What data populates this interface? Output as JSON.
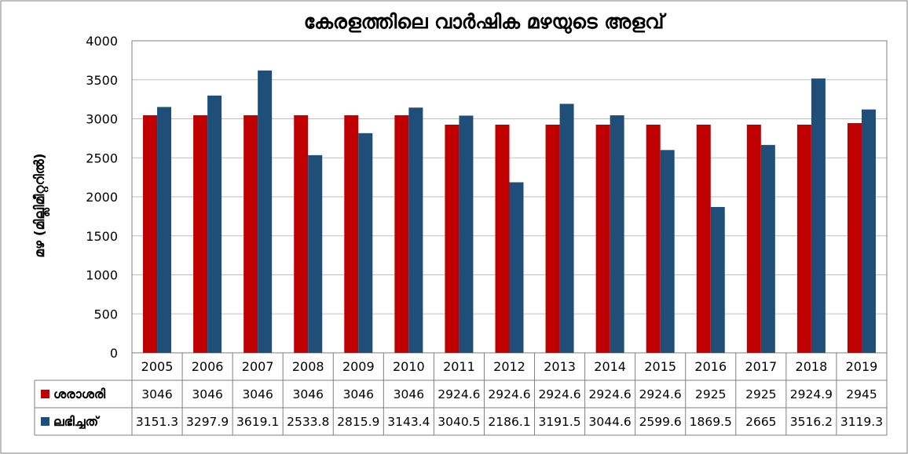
{
  "chart_data": {
    "type": "bar",
    "title": "കേരളത്തിലെ വാർഷിക മഴയുടെ അളവ്",
    "ylabel": "മഴ (മില്ലിമീറ്ററിൽ)",
    "xlabel": "",
    "ylim": [
      0,
      4000
    ],
    "yticks": [
      0,
      500,
      1000,
      1500,
      2000,
      2500,
      3000,
      3500,
      4000
    ],
    "grid": true,
    "legend": "data-table",
    "categories": [
      "2005",
      "2006",
      "2007",
      "2008",
      "2009",
      "2010",
      "2011",
      "2012",
      "2013",
      "2014",
      "2015",
      "2016",
      "2017",
      "2018",
      "2019"
    ],
    "series": [
      {
        "name": "ശരാശരി",
        "color": "#c00000",
        "values": [
          3046,
          3046,
          3046,
          3046,
          3046,
          3046,
          2924.6,
          2924.6,
          2924.6,
          2924.6,
          2924.6,
          2925,
          2925,
          2924.9,
          2945
        ],
        "labels": [
          "3046",
          "3046",
          "3046",
          "3046",
          "3046",
          "3046",
          "2924.6",
          "2924.6",
          "2924.6",
          "2924.6",
          "2924.6",
          "2925",
          "2925",
          "2924.9",
          "2945"
        ]
      },
      {
        "name": "ലഭിച്ചത്",
        "color": "#1f4e79",
        "values": [
          3151.3,
          3297.9,
          3619.1,
          2533.8,
          2815.9,
          3143.4,
          3040.5,
          2186.1,
          3191.5,
          3044.6,
          2599.6,
          1869.5,
          2665,
          3516.2,
          3119.3
        ],
        "labels": [
          "3151.3",
          "3297.9",
          "3619.1",
          "2533.8",
          "2815.9",
          "3143.4",
          "3040.5",
          "2186.1",
          "3191.5",
          "3044.6",
          "2599.6",
          "1869.5",
          "2665",
          "3516.2",
          "3119.3"
        ]
      }
    ]
  }
}
